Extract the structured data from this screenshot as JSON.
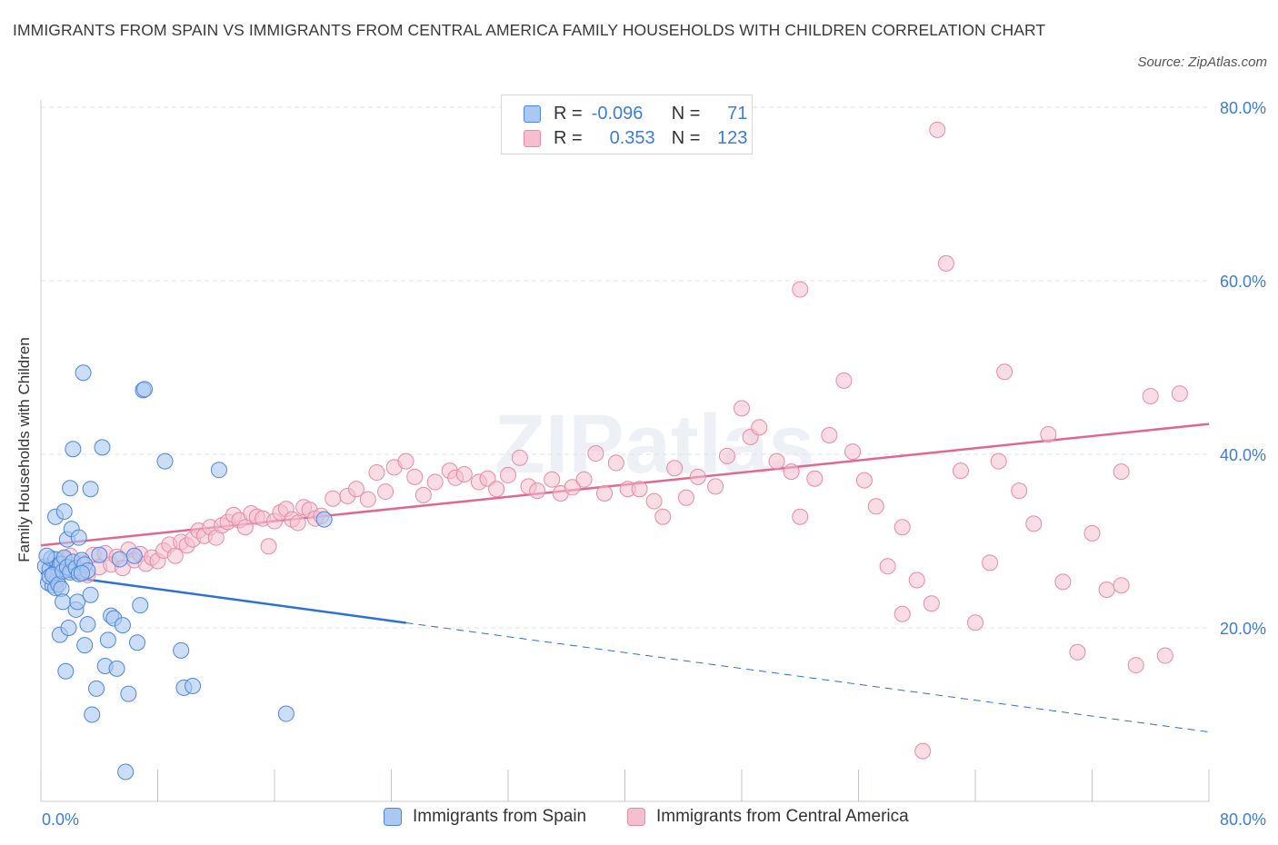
{
  "title": "IMMIGRANTS FROM SPAIN VS IMMIGRANTS FROM CENTRAL AMERICA FAMILY HOUSEHOLDS WITH CHILDREN CORRELATION CHART",
  "source": "Source: ZipAtlas.com",
  "watermark": "ZIPatlas",
  "colors": {
    "spain_fill": "#aac8f2",
    "spain_stroke": "#4d87dc",
    "spain_line": "#2d72d2",
    "ca_fill": "#f6bfd0",
    "ca_stroke": "#e58ba7",
    "ca_line": "#e06890",
    "axis_text": "#3d7dd8",
    "grid": "#dde0e6"
  },
  "legend_top": {
    "rows": [
      {
        "r_label": "R =",
        "r_value": "-0.096",
        "n_label": "N =",
        "n_value": "71"
      },
      {
        "r_label": "R =",
        "r_value": "0.353",
        "n_label": "N =",
        "n_value": "123"
      }
    ]
  },
  "legend_bottom": {
    "items": [
      "Immigrants from Spain",
      "Immigrants from Central America"
    ]
  },
  "chart_data": {
    "type": "scatter",
    "title": "IMMIGRANTS FROM SPAIN VS IMMIGRANTS FROM CENTRAL AMERICA FAMILY HOUSEHOLDS WITH CHILDREN CORRELATION CHART",
    "xlabel": "",
    "ylabel": "Family Households with Children",
    "xlim": [
      0,
      80
    ],
    "ylim": [
      0,
      80
    ],
    "x_tick_labels": [
      "0.0%",
      "80.0%"
    ],
    "y_tick_labels": [
      "20.0%",
      "40.0%",
      "60.0%",
      "80.0%"
    ],
    "y_ticks": [
      20,
      40,
      60,
      80
    ],
    "grid": true,
    "legend": "bottom",
    "series": [
      {
        "name": "Immigrants from Spain",
        "r": -0.096,
        "n": 71,
        "trend": {
          "x0": 0,
          "y0": 26.3,
          "x1": 80,
          "y1": 8.0,
          "solid_until": 25
        },
        "points": [
          [
            0.3,
            27.1
          ],
          [
            0.5,
            25.2
          ],
          [
            0.6,
            26.8
          ],
          [
            0.7,
            28.0
          ],
          [
            0.8,
            24.9
          ],
          [
            0.9,
            26.3
          ],
          [
            1.0,
            27.9
          ],
          [
            1.1,
            25.5
          ],
          [
            1.2,
            26.7
          ],
          [
            1.3,
            27.3
          ],
          [
            0.4,
            28.3
          ],
          [
            0.6,
            25.9
          ],
          [
            0.8,
            26.1
          ],
          [
            1.0,
            24.6
          ],
          [
            1.2,
            25.0
          ],
          [
            1.4,
            27.4
          ],
          [
            1.5,
            26.5
          ],
          [
            1.6,
            28.1
          ],
          [
            1.8,
            27.0
          ],
          [
            2.0,
            26.4
          ],
          [
            2.2,
            27.6
          ],
          [
            2.4,
            26.9
          ],
          [
            2.6,
            26.2
          ],
          [
            2.8,
            27.8
          ],
          [
            3.0,
            27.3
          ],
          [
            3.2,
            26.6
          ],
          [
            1.0,
            32.8
          ],
          [
            1.3,
            19.2
          ],
          [
            1.4,
            24.5
          ],
          [
            1.5,
            23.0
          ],
          [
            1.6,
            33.4
          ],
          [
            1.7,
            15.0
          ],
          [
            1.8,
            30.2
          ],
          [
            1.9,
            20.0
          ],
          [
            2.0,
            36.1
          ],
          [
            2.1,
            31.4
          ],
          [
            2.2,
            40.6
          ],
          [
            2.4,
            22.1
          ],
          [
            2.5,
            23.0
          ],
          [
            2.6,
            30.4
          ],
          [
            2.8,
            26.3
          ],
          [
            3.0,
            18.0
          ],
          [
            3.2,
            20.4
          ],
          [
            3.4,
            23.8
          ],
          [
            3.5,
            10.0
          ],
          [
            3.8,
            13.0
          ],
          [
            4.0,
            28.4
          ],
          [
            4.2,
            40.8
          ],
          [
            4.4,
            15.6
          ],
          [
            4.6,
            18.6
          ],
          [
            4.8,
            21.4
          ],
          [
            5.0,
            21.1
          ],
          [
            5.2,
            15.3
          ],
          [
            5.4,
            27.9
          ],
          [
            5.6,
            20.3
          ],
          [
            6.0,
            12.4
          ],
          [
            6.4,
            28.3
          ],
          [
            6.6,
            18.3
          ],
          [
            6.8,
            22.6
          ],
          [
            7.0,
            47.4
          ],
          [
            8.5,
            39.2
          ],
          [
            9.6,
            17.4
          ],
          [
            9.8,
            13.1
          ],
          [
            10.4,
            13.3
          ],
          [
            12.2,
            38.2
          ],
          [
            16.8,
            10.1
          ],
          [
            19.4,
            32.5
          ],
          [
            5.8,
            3.4
          ],
          [
            3.4,
            36.0
          ],
          [
            2.9,
            49.4
          ],
          [
            7.1,
            47.5
          ]
        ]
      },
      {
        "name": "Immigrants from Central America",
        "r": 0.353,
        "n": 123,
        "trend": {
          "x0": 0,
          "y0": 29.5,
          "x1": 80,
          "y1": 43.5
        },
        "points": [
          [
            0.8,
            27.2
          ],
          [
            1.2,
            26.4
          ],
          [
            1.6,
            27.9
          ],
          [
            2.0,
            28.3
          ],
          [
            2.4,
            26.8
          ],
          [
            2.8,
            27.5
          ],
          [
            3.2,
            26.1
          ],
          [
            3.6,
            28.4
          ],
          [
            4.0,
            27.0
          ],
          [
            4.4,
            28.6
          ],
          [
            4.8,
            27.3
          ],
          [
            5.2,
            28.2
          ],
          [
            5.6,
            26.9
          ],
          [
            6.0,
            29.0
          ],
          [
            6.4,
            27.8
          ],
          [
            6.8,
            28.5
          ],
          [
            7.2,
            27.4
          ],
          [
            7.6,
            28.1
          ],
          [
            8.0,
            27.7
          ],
          [
            8.4,
            28.9
          ],
          [
            8.8,
            29.6
          ],
          [
            9.2,
            28.3
          ],
          [
            9.6,
            29.9
          ],
          [
            10.0,
            29.5
          ],
          [
            10.4,
            30.2
          ],
          [
            10.8,
            31.2
          ],
          [
            11.2,
            30.6
          ],
          [
            11.6,
            31.6
          ],
          [
            12.0,
            30.4
          ],
          [
            12.4,
            31.8
          ],
          [
            12.8,
            32.2
          ],
          [
            13.2,
            33.0
          ],
          [
            13.6,
            32.4
          ],
          [
            14.0,
            31.6
          ],
          [
            14.4,
            33.2
          ],
          [
            14.8,
            32.8
          ],
          [
            15.2,
            32.6
          ],
          [
            15.6,
            29.4
          ],
          [
            16.0,
            32.3
          ],
          [
            16.4,
            33.3
          ],
          [
            16.8,
            33.7
          ],
          [
            17.2,
            32.5
          ],
          [
            17.6,
            32.1
          ],
          [
            18.0,
            33.9
          ],
          [
            18.4,
            33.6
          ],
          [
            18.8,
            32.6
          ],
          [
            19.2,
            32.9
          ],
          [
            20.0,
            34.9
          ],
          [
            21.0,
            35.2
          ],
          [
            21.6,
            36.0
          ],
          [
            22.4,
            34.8
          ],
          [
            23.0,
            37.9
          ],
          [
            23.6,
            35.7
          ],
          [
            24.2,
            38.5
          ],
          [
            25.0,
            39.2
          ],
          [
            25.6,
            37.4
          ],
          [
            26.2,
            35.3
          ],
          [
            27.0,
            36.8
          ],
          [
            28.0,
            38.1
          ],
          [
            28.4,
            37.3
          ],
          [
            29.0,
            37.7
          ],
          [
            30.0,
            36.8
          ],
          [
            30.6,
            37.2
          ],
          [
            31.2,
            36.0
          ],
          [
            32.0,
            37.6
          ],
          [
            32.8,
            39.6
          ],
          [
            33.4,
            36.3
          ],
          [
            34.0,
            35.8
          ],
          [
            35.0,
            37.1
          ],
          [
            35.6,
            35.5
          ],
          [
            36.4,
            36.2
          ],
          [
            37.2,
            37.1
          ],
          [
            38.0,
            40.1
          ],
          [
            38.6,
            35.5
          ],
          [
            39.4,
            39.0
          ],
          [
            40.2,
            36.0
          ],
          [
            41.0,
            36.0
          ],
          [
            42.0,
            34.6
          ],
          [
            42.6,
            32.8
          ],
          [
            43.4,
            38.4
          ],
          [
            44.2,
            35.0
          ],
          [
            45.0,
            37.4
          ],
          [
            46.2,
            36.3
          ],
          [
            47.0,
            39.8
          ],
          [
            48.0,
            45.3
          ],
          [
            48.6,
            42.0
          ],
          [
            49.2,
            43.1
          ],
          [
            50.4,
            39.2
          ],
          [
            51.4,
            38.0
          ],
          [
            52.0,
            32.8
          ],
          [
            53.0,
            37.2
          ],
          [
            54.0,
            42.2
          ],
          [
            55.0,
            48.5
          ],
          [
            55.6,
            40.3
          ],
          [
            56.4,
            37.0
          ],
          [
            57.2,
            34.0
          ],
          [
            58.0,
            27.1
          ],
          [
            59.0,
            31.6
          ],
          [
            60.0,
            25.5
          ],
          [
            61.0,
            22.8
          ],
          [
            62.0,
            62.0
          ],
          [
            63.0,
            38.1
          ],
          [
            64.0,
            20.6
          ],
          [
            65.0,
            27.5
          ],
          [
            65.6,
            39.2
          ],
          [
            66.0,
            49.5
          ],
          [
            67.0,
            35.8
          ],
          [
            68.0,
            32.0
          ],
          [
            69.0,
            42.3
          ],
          [
            70.0,
            25.3
          ],
          [
            71.0,
            17.2
          ],
          [
            72.0,
            30.9
          ],
          [
            73.0,
            24.4
          ],
          [
            74.0,
            24.9
          ],
          [
            75.0,
            15.7
          ],
          [
            76.0,
            46.7
          ],
          [
            77.0,
            16.8
          ],
          [
            78.0,
            47.0
          ],
          [
            61.4,
            77.4
          ],
          [
            52.0,
            59.0
          ],
          [
            60.4,
            5.8
          ],
          [
            59.0,
            21.6
          ],
          [
            74.0,
            38.0
          ]
        ]
      }
    ]
  }
}
